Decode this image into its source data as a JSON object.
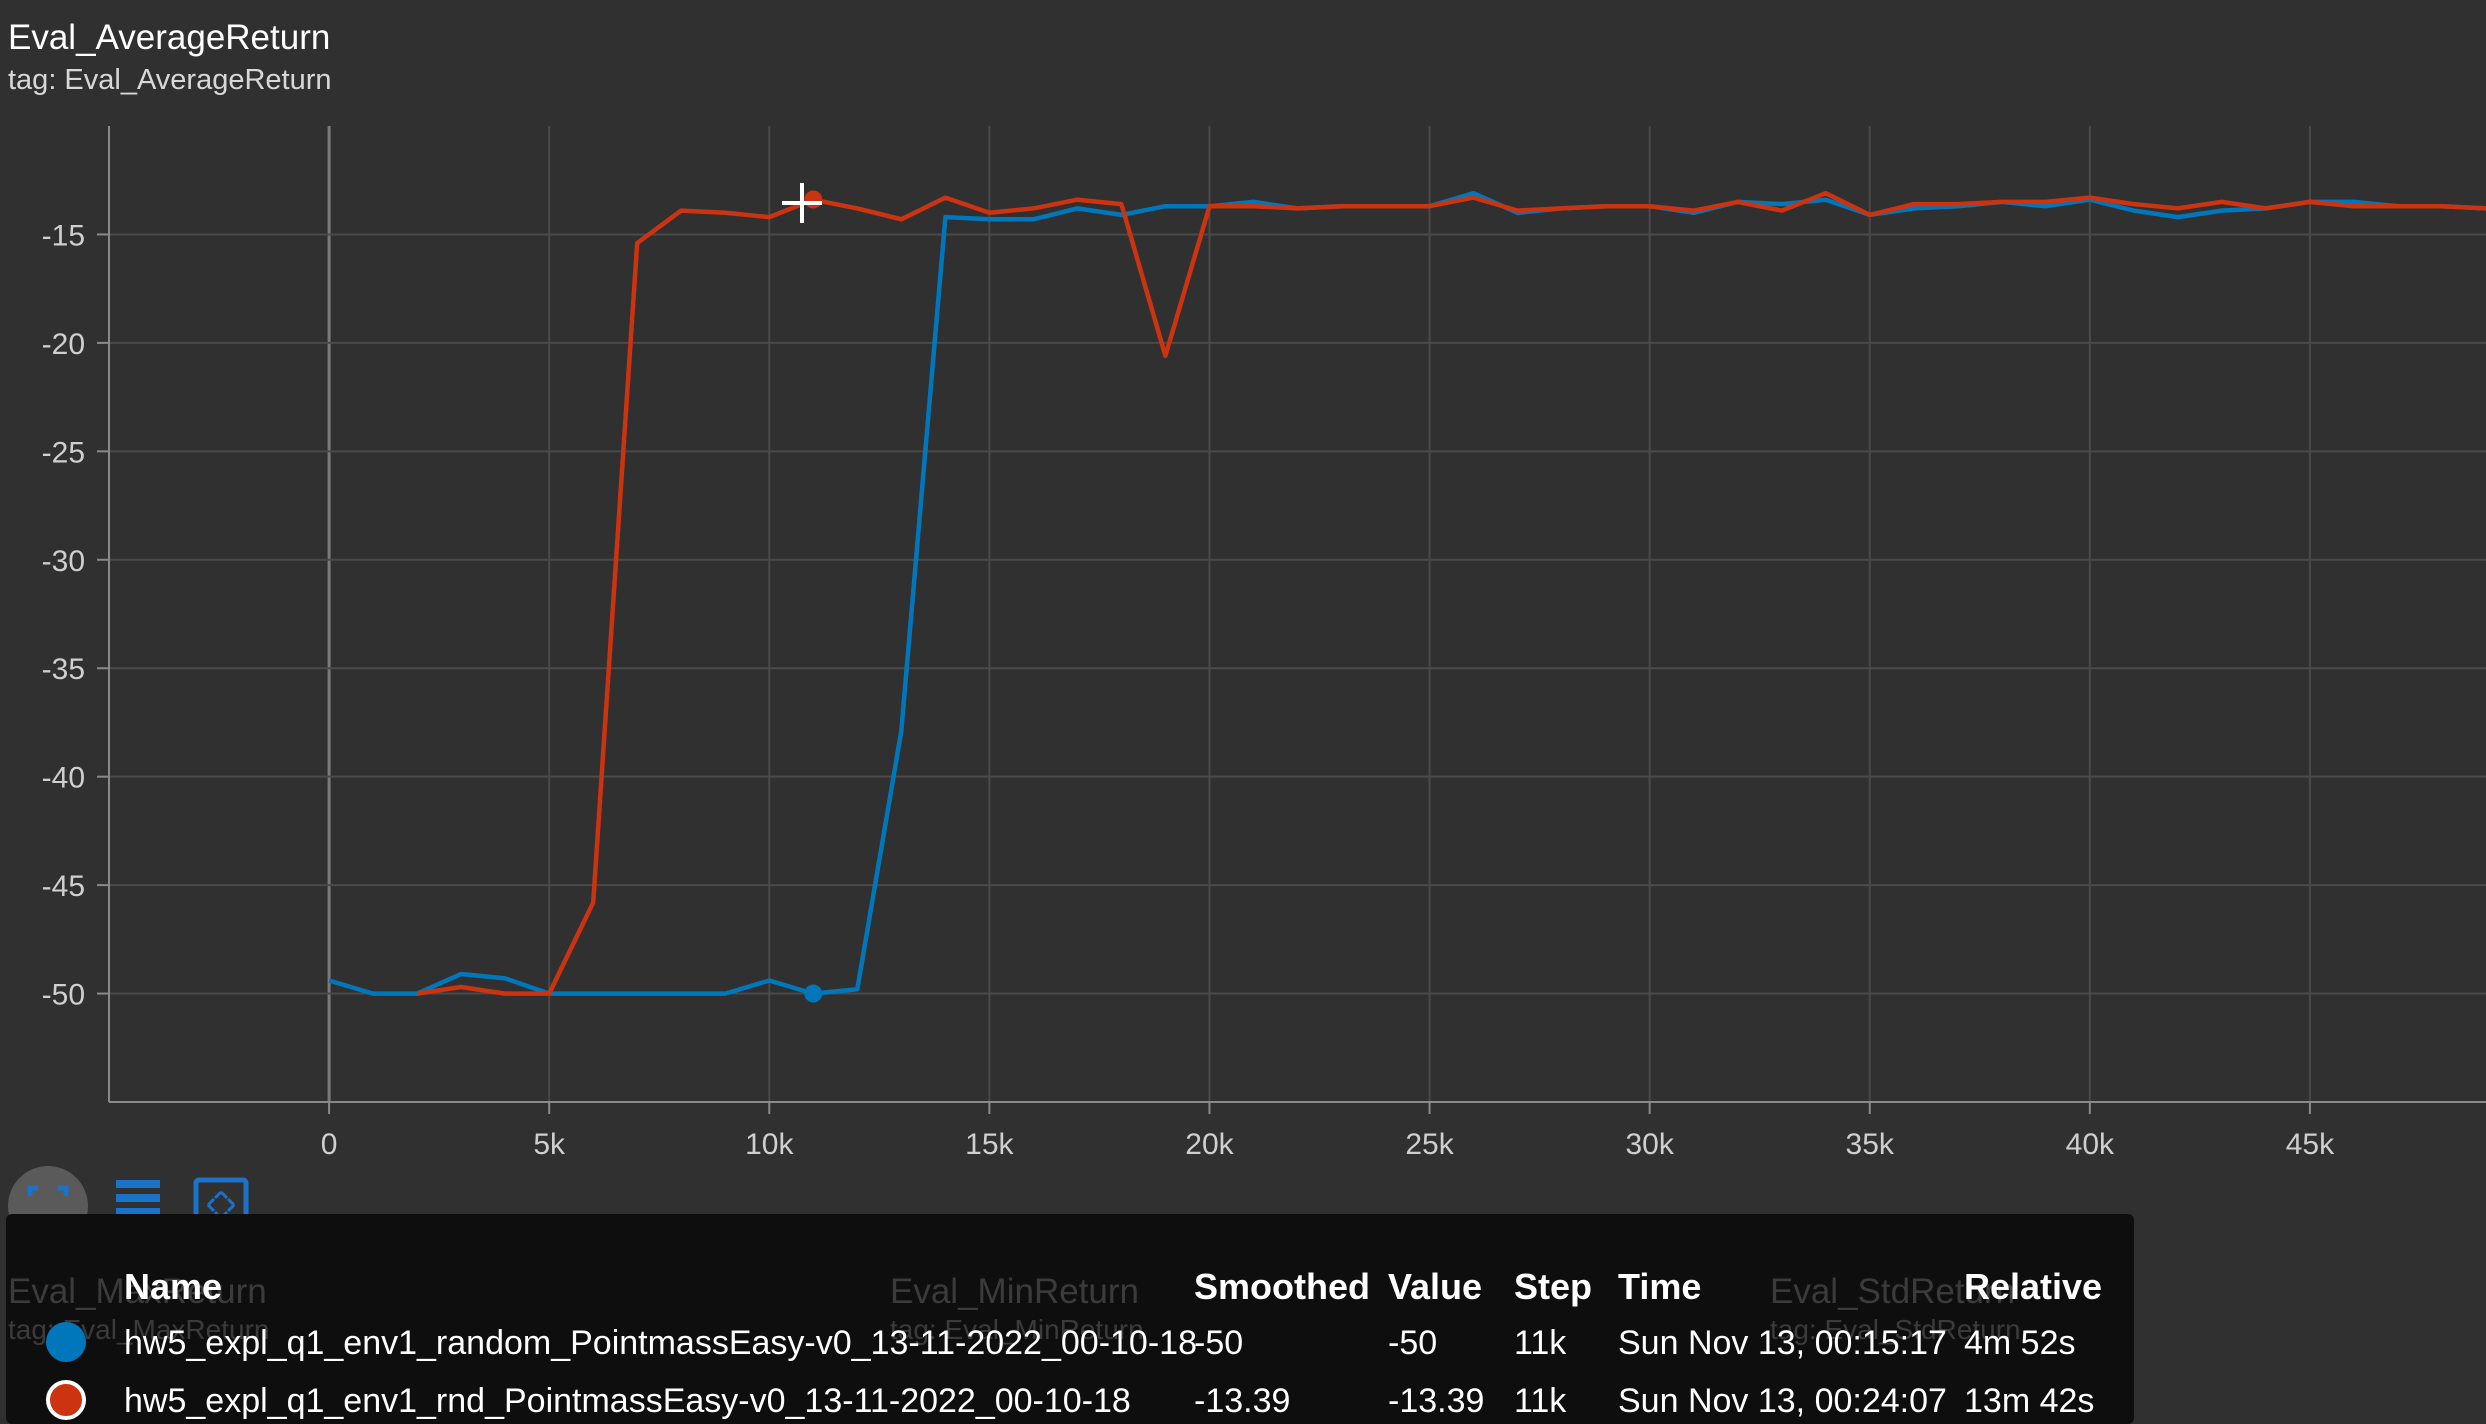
{
  "card": {
    "title": "Eval_AverageReturn",
    "subtitle": "tag: Eval_AverageReturn"
  },
  "chart_data": {
    "type": "line",
    "title": "Eval_AverageReturn",
    "xlabel": "",
    "ylabel": "",
    "x_ticks": [
      "0",
      "5k",
      "10k",
      "15k",
      "20k",
      "25k",
      "30k",
      "35k",
      "40k",
      "45k"
    ],
    "y_ticks": [
      "-15",
      "-20",
      "-25",
      "-30",
      "-35",
      "-40",
      "-45",
      "-50"
    ],
    "xlim": [
      -5000,
      49000
    ],
    "ylim": [
      -55,
      -10
    ],
    "grid": true,
    "series": [
      {
        "name": "hw5_expl_q1_env1_random_PointmassEasy-v0_13-11-2022_00-10-18",
        "color": "#0077bb",
        "x": [
          0,
          1000,
          2000,
          3000,
          4000,
          5000,
          6000,
          7000,
          8000,
          9000,
          10000,
          11000,
          12000,
          13000,
          14000,
          15000,
          16000,
          17000,
          18000,
          19000,
          20000,
          21000,
          22000,
          23000,
          24000,
          25000,
          26000,
          27000,
          28000,
          29000,
          30000,
          31000,
          32000,
          33000,
          34000,
          35000,
          36000,
          37000,
          38000,
          39000,
          40000,
          41000,
          42000,
          43000,
          44000,
          45000,
          46000,
          47000,
          48000,
          49000
        ],
        "y": [
          -49.4,
          -50,
          -50,
          -49.1,
          -49.3,
          -50,
          -50,
          -50,
          -50,
          -50,
          -49.4,
          -50,
          -49.8,
          -37.9,
          -14.2,
          -14.3,
          -14.3,
          -13.8,
          -14.1,
          -13.7,
          -13.7,
          -13.5,
          -13.8,
          -13.7,
          -13.7,
          -13.7,
          -13.1,
          -14,
          -13.8,
          -13.7,
          -13.7,
          -14,
          -13.5,
          -13.6,
          -13.4,
          -14.1,
          -13.8,
          -13.7,
          -13.5,
          -13.7,
          -13.4,
          -13.9,
          -14.2,
          -13.9,
          -13.8,
          -13.5,
          -13.5,
          -13.7,
          -13.7,
          -13.8
        ]
      },
      {
        "name": "hw5_expl_q1_env1_rnd_PointmassEasy-v0_13-11-2022_00-10-18",
        "color": "#cc3311",
        "x": [
          2000,
          3000,
          4000,
          5000,
          6000,
          7000,
          8000,
          9000,
          10000,
          11000,
          12000,
          13000,
          14000,
          15000,
          16000,
          17000,
          18000,
          19000,
          20000,
          21000,
          22000,
          23000,
          24000,
          25000,
          26000,
          27000,
          28000,
          29000,
          30000,
          31000,
          32000,
          33000,
          34000,
          35000,
          36000,
          37000,
          38000,
          39000,
          40000,
          41000,
          42000,
          43000,
          44000,
          45000,
          46000,
          47000,
          48000,
          49000
        ],
        "y": [
          -50,
          -49.7,
          -50,
          -50,
          -45.8,
          -15.4,
          -13.9,
          -14,
          -14.2,
          -13.4,
          -13.8,
          -14.3,
          -13.3,
          -14,
          -13.8,
          -13.4,
          -13.6,
          -20.6,
          -13.7,
          -13.7,
          -13.8,
          -13.7,
          -13.7,
          -13.7,
          -13.3,
          -13.9,
          -13.8,
          -13.7,
          -13.7,
          -13.9,
          -13.5,
          -13.9,
          -13.1,
          -14.1,
          -13.6,
          -13.6,
          -13.5,
          -13.5,
          -13.3,
          -13.6,
          -13.8,
          -13.5,
          -13.8,
          -13.5,
          -13.7,
          -13.7,
          -13.7,
          -13.8
        ]
      }
    ],
    "highlight_points": [
      {
        "series": 0,
        "x": 11000,
        "y": -50
      },
      {
        "series": 1,
        "x": 11000,
        "y": -13.39
      }
    ]
  },
  "toolbar": {
    "fit_icon": "fit-domain-icon",
    "lines_icon": "data-table-icon",
    "expand_icon": "expand-icon"
  },
  "background_cards": {
    "left_title": "Eval_MaxReturn",
    "left_tag": "tag: Eval_MaxReturn",
    "mid_title": "Eval_MinReturn",
    "mid_tag": "tag: Eval_MinReturn",
    "right_title": "Eval_StdReturn",
    "right_tag": "tag: Eval_StdReturn"
  },
  "tooltip": {
    "headers": {
      "name": "Name",
      "smoothed": "Smoothed",
      "value": "Value",
      "step": "Step",
      "time": "Time",
      "relative": "Relative"
    },
    "rows": [
      {
        "color": "#0077bb",
        "name": "hw5_expl_q1_env1_random_PointmassEasy-v0_13-11-2022_00-10-18",
        "smoothed": "-50",
        "value": "-50",
        "step": "11k",
        "time": "Sun Nov 13, 00:15:17",
        "relative": "4m 52s"
      },
      {
        "color": "#cc3311",
        "name": "hw5_expl_q1_env1_rnd_PointmassEasy-v0_13-11-2022_00-10-18",
        "smoothed": "-13.39",
        "value": "-13.39",
        "step": "11k",
        "time": "Sun Nov 13, 00:24:07",
        "relative": "13m 42s"
      }
    ]
  }
}
